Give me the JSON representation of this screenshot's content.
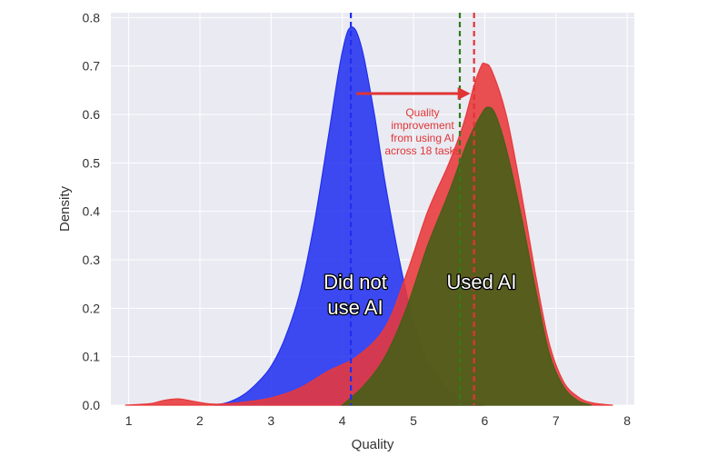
{
  "chart_data": {
    "type": "area",
    "xlabel": "Quality",
    "ylabel": "Density",
    "xlim": [
      0.75,
      8.1
    ],
    "ylim": [
      0,
      0.81
    ],
    "x_ticks": [
      "1",
      "2",
      "3",
      "4",
      "5",
      "6",
      "7",
      "8"
    ],
    "y_ticks": [
      "0.0",
      "0.1",
      "0.2",
      "0.3",
      "0.4",
      "0.5",
      "0.6",
      "0.7",
      "0.8"
    ],
    "grid": true,
    "series": [
      {
        "color": "#1f2ff0",
        "points": [
          [
            2.2,
            0.0
          ],
          [
            2.4,
            0.006
          ],
          [
            2.6,
            0.02
          ],
          [
            2.8,
            0.045
          ],
          [
            3.0,
            0.08
          ],
          [
            3.2,
            0.14
          ],
          [
            3.4,
            0.23
          ],
          [
            3.6,
            0.37
          ],
          [
            3.8,
            0.55
          ],
          [
            3.95,
            0.69
          ],
          [
            4.05,
            0.76
          ],
          [
            4.12,
            0.78
          ],
          [
            4.2,
            0.77
          ],
          [
            4.3,
            0.72
          ],
          [
            4.45,
            0.6
          ],
          [
            4.6,
            0.46
          ],
          [
            4.8,
            0.3
          ],
          [
            5.0,
            0.17
          ],
          [
            5.2,
            0.09
          ],
          [
            5.4,
            0.045
          ],
          [
            5.6,
            0.02
          ],
          [
            5.8,
            0.008
          ],
          [
            6.0,
            0.0
          ]
        ]
      },
      {
        "color": "#e8383a",
        "points": [
          [
            0.95,
            0.0
          ],
          [
            1.3,
            0.003
          ],
          [
            1.5,
            0.01
          ],
          [
            1.7,
            0.013
          ],
          [
            1.9,
            0.008
          ],
          [
            2.2,
            0.002
          ],
          [
            2.6,
            0.006
          ],
          [
            3.0,
            0.015
          ],
          [
            3.4,
            0.035
          ],
          [
            3.8,
            0.07
          ],
          [
            4.2,
            0.1
          ],
          [
            4.6,
            0.16
          ],
          [
            4.9,
            0.27
          ],
          [
            5.2,
            0.4
          ],
          [
            5.5,
            0.5
          ],
          [
            5.7,
            0.58
          ],
          [
            5.85,
            0.66
          ],
          [
            5.95,
            0.7
          ],
          [
            6.0,
            0.705
          ],
          [
            6.1,
            0.69
          ],
          [
            6.3,
            0.6
          ],
          [
            6.5,
            0.45
          ],
          [
            6.7,
            0.28
          ],
          [
            6.9,
            0.13
          ],
          [
            7.1,
            0.05
          ],
          [
            7.3,
            0.018
          ],
          [
            7.5,
            0.005
          ],
          [
            7.8,
            0.0
          ]
        ]
      },
      {
        "color": "#4a5e18",
        "points": [
          [
            4.0,
            0.0
          ],
          [
            4.3,
            0.04
          ],
          [
            4.6,
            0.1
          ],
          [
            4.9,
            0.2
          ],
          [
            5.2,
            0.33
          ],
          [
            5.5,
            0.44
          ],
          [
            5.75,
            0.54
          ],
          [
            5.95,
            0.6
          ],
          [
            6.05,
            0.615
          ],
          [
            6.15,
            0.6
          ],
          [
            6.3,
            0.53
          ],
          [
            6.5,
            0.4
          ],
          [
            6.7,
            0.25
          ],
          [
            6.9,
            0.11
          ],
          [
            7.1,
            0.04
          ],
          [
            7.3,
            0.01
          ],
          [
            7.5,
            0.0
          ]
        ]
      }
    ],
    "mean_lines": [
      {
        "x": 4.12,
        "color": "#1f2ff0"
      },
      {
        "x": 5.65,
        "color": "#2e7d18"
      },
      {
        "x": 5.85,
        "color": "#e03535"
      }
    ],
    "annotation": {
      "text": [
        "Quality",
        "improvement",
        "from using AI",
        "across 18 tasks"
      ],
      "color": "#e03535",
      "arrow_from": 4.12,
      "arrow_to": 5.85
    },
    "labels": {
      "no_ai": [
        "Did not",
        "use AI"
      ],
      "ai": "Used AI"
    }
  }
}
